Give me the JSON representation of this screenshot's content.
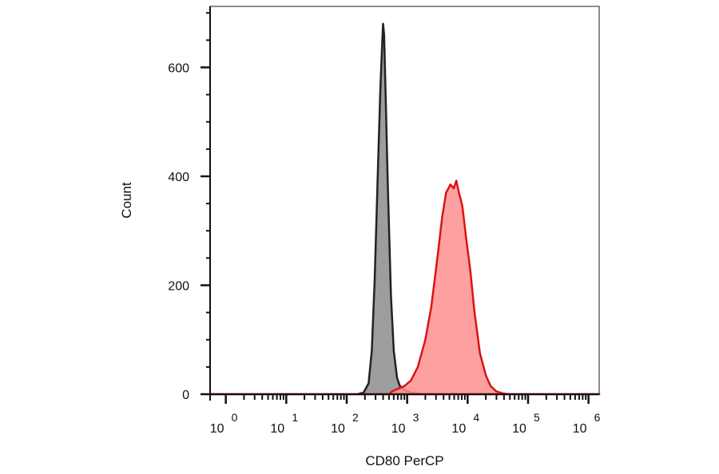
{
  "chart_data": {
    "type": "area",
    "xlabel": "CD80 PerCP",
    "ylabel": "Count",
    "x_scale": "log",
    "xlim": [
      0.55,
      1500000
    ],
    "ylim": [
      0,
      712
    ],
    "grid": false,
    "y_ticks": [
      {
        "value": 0,
        "label": "0"
      },
      {
        "value": 200,
        "label": "200"
      },
      {
        "value": 400,
        "label": "400"
      },
      {
        "value": 600,
        "label": "600"
      }
    ],
    "x_ticks": [
      {
        "value": 1,
        "base": "10",
        "exp": "0"
      },
      {
        "value": 10,
        "base": "10",
        "exp": "1"
      },
      {
        "value": 100,
        "base": "10",
        "exp": "2"
      },
      {
        "value": 1000,
        "base": "10",
        "exp": "3"
      },
      {
        "value": 10000,
        "base": "10",
        "exp": "4"
      },
      {
        "value": 100000,
        "base": "10",
        "exp": "5"
      },
      {
        "value": 1000000,
        "base": "10",
        "exp": "6"
      }
    ],
    "series": [
      {
        "color": "#8c8c8c",
        "stroke": "#222222",
        "points": [
          [
            0.55,
            0
          ],
          [
            150,
            0
          ],
          [
            190,
            3
          ],
          [
            230,
            20
          ],
          [
            260,
            80
          ],
          [
            290,
            210
          ],
          [
            330,
            420
          ],
          [
            360,
            560
          ],
          [
            385,
            640
          ],
          [
            400,
            680
          ],
          [
            415,
            660
          ],
          [
            440,
            550
          ],
          [
            480,
            380
          ],
          [
            540,
            180
          ],
          [
            600,
            80
          ],
          [
            680,
            30
          ],
          [
            760,
            15
          ],
          [
            900,
            8
          ],
          [
            1150,
            3
          ],
          [
            1400,
            2
          ],
          [
            1700,
            0
          ],
          [
            1500000,
            0
          ]
        ]
      },
      {
        "color": "#ff8f8f",
        "stroke": "#d81414",
        "points": [
          [
            0.55,
            0
          ],
          [
            500,
            0
          ],
          [
            560,
            5
          ],
          [
            700,
            10
          ],
          [
            900,
            15
          ],
          [
            1150,
            25
          ],
          [
            1500,
            50
          ],
          [
            2000,
            100
          ],
          [
            2500,
            160
          ],
          [
            3200,
            255
          ],
          [
            3800,
            325
          ],
          [
            4400,
            370
          ],
          [
            5200,
            385
          ],
          [
            5900,
            378
          ],
          [
            6500,
            392
          ],
          [
            7200,
            370
          ],
          [
            8200,
            345
          ],
          [
            9500,
            285
          ],
          [
            11000,
            230
          ],
          [
            13000,
            150
          ],
          [
            16000,
            75
          ],
          [
            20000,
            35
          ],
          [
            24000,
            15
          ],
          [
            30000,
            5
          ],
          [
            40000,
            1
          ],
          [
            50000,
            0
          ],
          [
            1500000,
            0
          ]
        ]
      }
    ]
  }
}
